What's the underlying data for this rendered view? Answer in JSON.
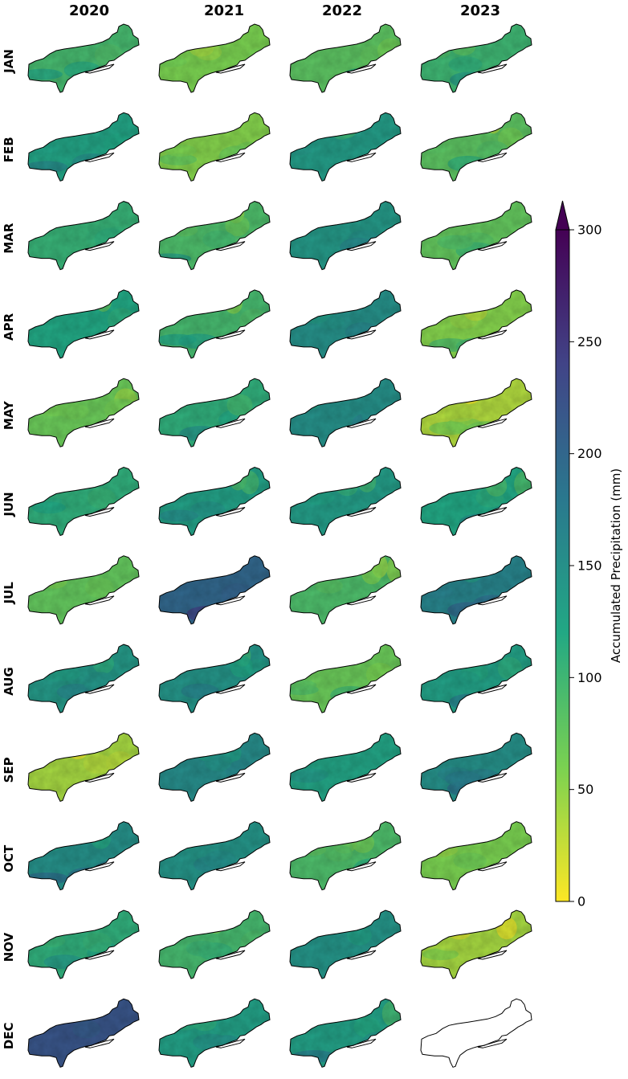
{
  "figure": {
    "years": [
      "2020",
      "2021",
      "2022",
      "2023"
    ],
    "months": [
      "JAN",
      "FEB",
      "MAR",
      "APR",
      "MAY",
      "JUN",
      "JUL",
      "AUG",
      "SEP",
      "OCT",
      "NOV",
      "DEC"
    ],
    "region_icon": "northeast-us-outline-icon",
    "missing_panels": [
      {
        "year": "2023",
        "month": "DEC",
        "rendering": "outline only"
      }
    ],
    "panel_mean_precip_mm": [
      [
        95,
        60,
        80,
        100
      ],
      [
        125,
        55,
        135,
        80
      ],
      [
        105,
        90,
        140,
        75
      ],
      [
        120,
        95,
        150,
        55
      ],
      [
        70,
        110,
        150,
        35
      ],
      [
        110,
        130,
        135,
        120
      ],
      [
        75,
        200,
        90,
        165
      ],
      [
        140,
        145,
        70,
        130
      ],
      [
        40,
        155,
        125,
        150
      ],
      [
        150,
        145,
        90,
        60
      ],
      [
        110,
        95,
        145,
        40
      ],
      [
        220,
        130,
        130,
        null
      ]
    ]
  },
  "colorbar": {
    "label": "Accumulated Precipitation (mm)",
    "ticks": [
      "0",
      "50",
      "100",
      "150",
      "200",
      "250",
      "300"
    ],
    "min": 0,
    "max": 300,
    "extend": "max",
    "colormap": "viridis_r",
    "stops": [
      "#fde725",
      "#7ad151",
      "#22a884",
      "#2a788e",
      "#414487",
      "#440154"
    ]
  }
}
